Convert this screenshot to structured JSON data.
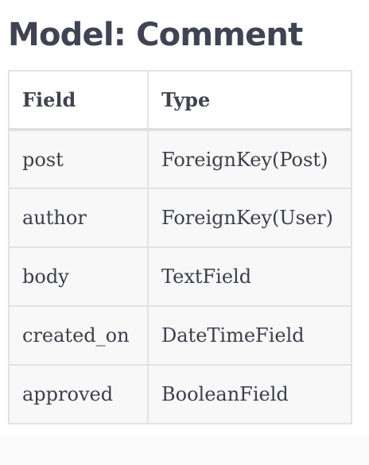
{
  "title": "Model: Comment",
  "table": {
    "headers": [
      "Field",
      "Type"
    ],
    "rows": [
      {
        "field": "post",
        "type": "ForeignKey(Post)"
      },
      {
        "field": "author",
        "type": "ForeignKey(User)"
      },
      {
        "field": "body",
        "type": "TextField"
      },
      {
        "field": "created_on",
        "type": "DateTimeField"
      },
      {
        "field": "approved",
        "type": "BooleanField"
      }
    ]
  }
}
